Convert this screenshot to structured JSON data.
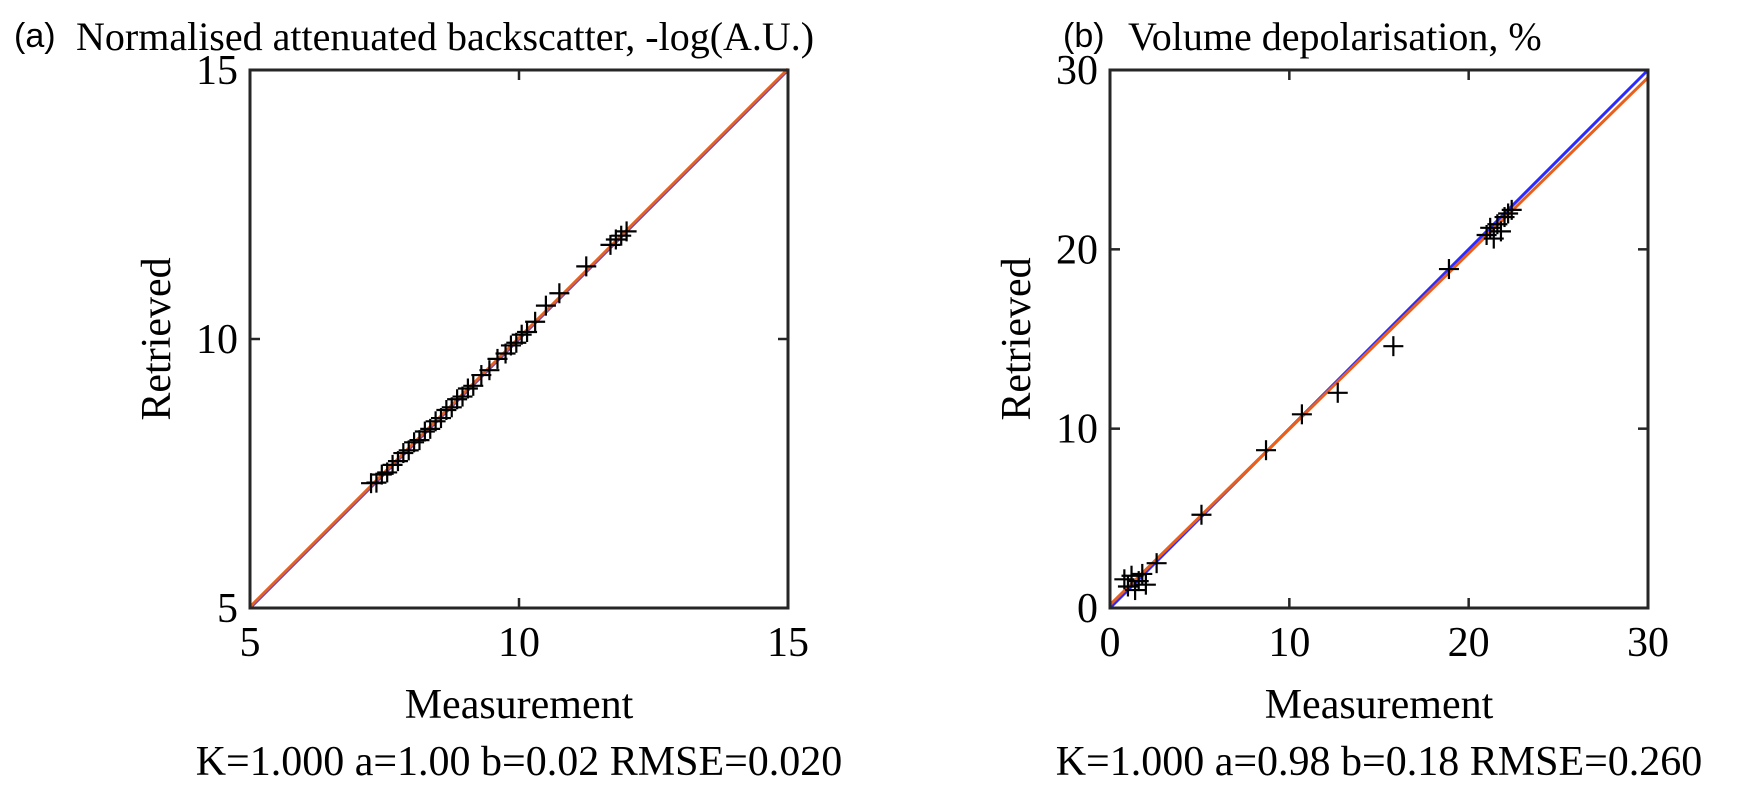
{
  "chart_data": [
    {
      "type": "scatter",
      "panel_label": "(a)",
      "title": "Normalised attenuated backscatter, -log(A.U.)",
      "xlabel": "Measurement",
      "ylabel": "Retrieved",
      "xlim": [
        5,
        15
      ],
      "ylim": [
        5,
        15
      ],
      "xticks": [
        5,
        10,
        15
      ],
      "yticks": [
        5,
        10,
        15
      ],
      "grid": false,
      "stats_text": "K=1.000 a=1.00 b=0.02 RMSE=0.020",
      "fit": {
        "a": 1.0,
        "b": 0.02
      },
      "colors": {
        "identity_line": "#2b2bff",
        "fit_line": "#e8601c",
        "markers": "#000000",
        "axes": "#262626"
      },
      "series": [
        {
          "values": [
            [
              7.25,
              7.32
            ],
            [
              7.35,
              7.33
            ],
            [
              7.45,
              7.48
            ],
            [
              7.55,
              7.52
            ],
            [
              7.65,
              7.66
            ],
            [
              7.75,
              7.73
            ],
            [
              7.85,
              7.88
            ],
            [
              7.95,
              7.93
            ],
            [
              8.05,
              8.08
            ],
            [
              8.15,
              8.12
            ],
            [
              8.25,
              8.28
            ],
            [
              8.35,
              8.33
            ],
            [
              8.45,
              8.47
            ],
            [
              8.55,
              8.53
            ],
            [
              8.65,
              8.68
            ],
            [
              8.75,
              8.73
            ],
            [
              8.85,
              8.88
            ],
            [
              8.95,
              8.93
            ],
            [
              9.05,
              9.08
            ],
            [
              9.15,
              9.13
            ],
            [
              9.3,
              9.33
            ],
            [
              9.45,
              9.42
            ],
            [
              9.6,
              9.63
            ],
            [
              9.75,
              9.73
            ],
            [
              9.85,
              9.88
            ],
            [
              9.95,
              9.93
            ],
            [
              10.05,
              10.08
            ],
            [
              10.15,
              10.13
            ],
            [
              10.3,
              10.32
            ],
            [
              10.5,
              10.62
            ],
            [
              10.75,
              10.85
            ],
            [
              11.25,
              11.35
            ],
            [
              11.7,
              11.75
            ],
            [
              11.8,
              11.85
            ],
            [
              11.9,
              11.92
            ],
            [
              12.0,
              12.0
            ]
          ]
        }
      ]
    },
    {
      "type": "scatter",
      "panel_label": "(b)",
      "title": "Volume depolarisation, %",
      "xlabel": "Measurement",
      "ylabel": "Retrieved",
      "xlim": [
        0,
        30
      ],
      "ylim": [
        0,
        30
      ],
      "xticks": [
        0,
        10,
        20,
        30
      ],
      "yticks": [
        0,
        10,
        20,
        30
      ],
      "grid": false,
      "stats_text": "K=1.000 a=0.98 b=0.18 RMSE=0.260",
      "fit": {
        "a": 0.98,
        "b": 0.18
      },
      "colors": {
        "identity_line": "#2b2bff",
        "fit_line": "#e8601c",
        "markers": "#000000",
        "axes": "#262626"
      },
      "series": [
        {
          "values": [
            [
              0.8,
              1.6
            ],
            [
              1.0,
              1.2
            ],
            [
              1.2,
              1.8
            ],
            [
              1.4,
              1.0
            ],
            [
              1.6,
              1.5
            ],
            [
              1.8,
              1.9
            ],
            [
              2.0,
              1.3
            ],
            [
              2.6,
              2.5
            ],
            [
              5.1,
              5.2
            ],
            [
              8.7,
              8.8
            ],
            [
              10.7,
              10.8
            ],
            [
              12.7,
              12.0
            ],
            [
              15.8,
              14.6
            ],
            [
              18.9,
              18.9
            ],
            [
              21.0,
              20.8
            ],
            [
              21.2,
              21.2
            ],
            [
              21.4,
              20.6
            ],
            [
              21.6,
              21.4
            ],
            [
              21.8,
              21.0
            ],
            [
              22.0,
              21.8
            ],
            [
              22.2,
              22.0
            ],
            [
              22.4,
              22.2
            ]
          ]
        }
      ]
    }
  ]
}
